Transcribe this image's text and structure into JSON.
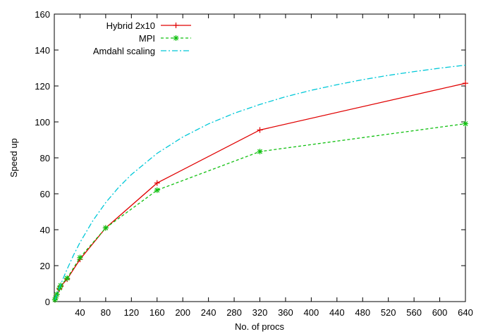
{
  "chart_data": {
    "type": "line",
    "title": "",
    "xlabel": "No. of procs",
    "ylabel": "Speed up",
    "xlim": [
      0,
      640
    ],
    "ylim": [
      0,
      160
    ],
    "xticks": [
      40,
      80,
      120,
      160,
      200,
      240,
      280,
      320,
      360,
      400,
      440,
      480,
      520,
      560,
      600,
      640
    ],
    "yticks": [
      0,
      20,
      40,
      60,
      80,
      100,
      120,
      140,
      160
    ],
    "grid": false,
    "legend_position": "top-left",
    "series": [
      {
        "name": "Hybrid 2x10",
        "color": "#e00000",
        "style": "solid",
        "marker": "plus",
        "x": [
          1,
          2,
          4,
          8,
          10,
          20,
          40,
          80,
          160,
          320,
          640
        ],
        "y": [
          1,
          2,
          4,
          7,
          8.5,
          12.5,
          23.5,
          41,
          66,
          95.5,
          121.5
        ]
      },
      {
        "name": "MPI",
        "color": "#10c010",
        "style": "dashed",
        "marker": "star",
        "x": [
          1,
          2,
          4,
          8,
          10,
          20,
          40,
          80,
          160,
          320,
          640
        ],
        "y": [
          1,
          2,
          4,
          7.5,
          9,
          13,
          24.5,
          41,
          62,
          83.5,
          99
        ]
      },
      {
        "name": "Amdahl scaling",
        "color": "#00c8d8",
        "style": "dashdot",
        "marker": "none",
        "x": [
          1,
          2,
          4,
          8,
          12,
          16,
          20,
          30,
          40,
          60,
          80,
          100,
          120,
          160,
          200,
          240,
          280,
          320,
          360,
          400,
          440,
          480,
          520,
          560,
          600,
          640
        ],
        "y": [
          1,
          2,
          3.9,
          7.7,
          11.3,
          14.8,
          18.1,
          25.9,
          32.9,
          45.0,
          55.1,
          63.5,
          70.7,
          82.5,
          91.6,
          98.9,
          104.8,
          109.7,
          114.0,
          117.6,
          120.7,
          123.5,
          125.9,
          128.0,
          129.9,
          131.6
        ]
      }
    ]
  }
}
